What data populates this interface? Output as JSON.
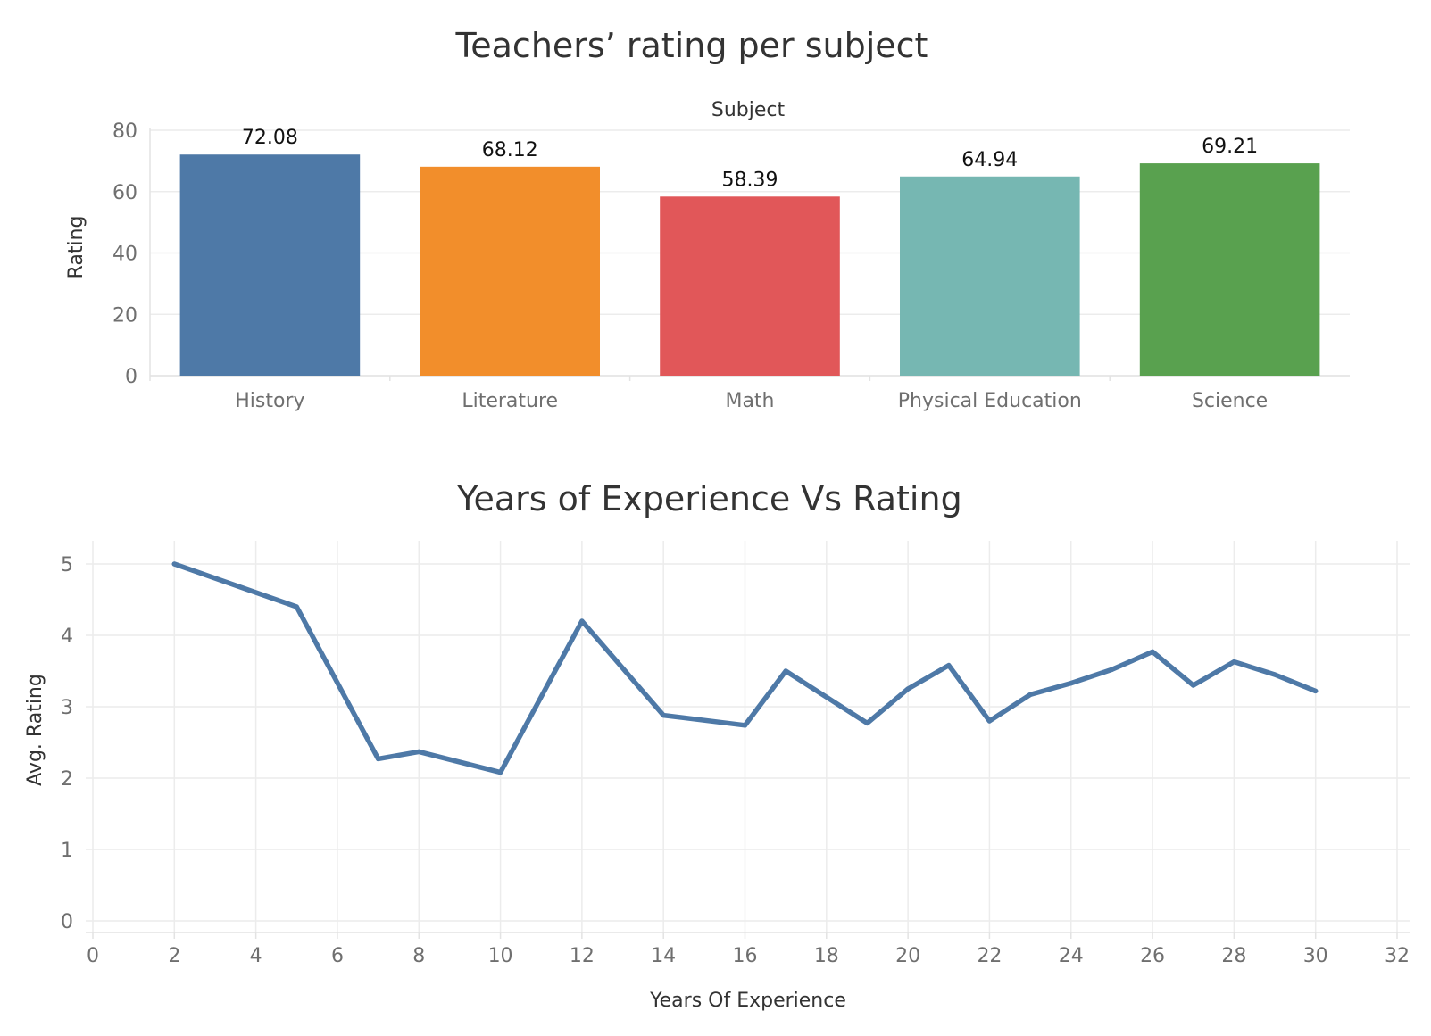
{
  "chart_data": [
    {
      "type": "bar",
      "title": "Teachers’ rating per subject",
      "column_header": "Subject",
      "ylabel": "Rating",
      "xlabel": "",
      "ylim": [
        0,
        80
      ],
      "yticks": [
        "0",
        "20",
        "40",
        "60",
        "80"
      ],
      "grid": true,
      "categories": [
        "History",
        "Literature",
        "Math",
        "Physical Education",
        "Science"
      ],
      "values": [
        72.08,
        68.12,
        58.39,
        64.94,
        69.21
      ],
      "value_labels": [
        "72.08",
        "68.12",
        "58.39",
        "64.94",
        "69.21"
      ],
      "colors": [
        "#4e79a7",
        "#f28e2b",
        "#e15759",
        "#76b7b2",
        "#59a14f"
      ]
    },
    {
      "type": "line",
      "title": "Years of Experience Vs Rating",
      "xlabel": "Years Of Experience",
      "ylabel": "Avg. Rating",
      "xlim": [
        0,
        32
      ],
      "ylim": [
        0,
        5
      ],
      "xticks": [
        "0",
        "2",
        "4",
        "6",
        "8",
        "10",
        "12",
        "14",
        "16",
        "18",
        "20",
        "22",
        "24",
        "26",
        "28",
        "30",
        "32"
      ],
      "yticks": [
        "0",
        "1",
        "2",
        "3",
        "4",
        "5"
      ],
      "grid": true,
      "color": "#4e79a7",
      "series": [
        {
          "x": [
            2,
            5,
            7,
            8,
            10,
            12,
            14,
            16,
            17,
            19,
            20,
            21,
            22,
            23,
            24,
            25,
            26,
            27,
            28,
            29,
            30
          ],
          "y": [
            5.0,
            4.4,
            2.27,
            2.37,
            2.08,
            4.2,
            2.88,
            2.74,
            3.5,
            2.77,
            3.25,
            3.58,
            2.8,
            3.17,
            3.33,
            3.52,
            3.77,
            3.3,
            3.63,
            3.45,
            3.22
          ]
        }
      ]
    }
  ]
}
